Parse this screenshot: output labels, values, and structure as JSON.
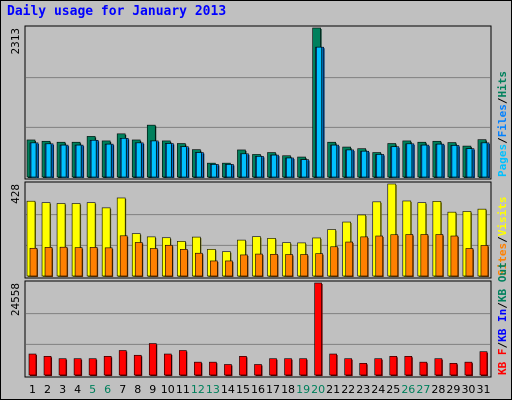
{
  "title": "Daily usage for January 2013",
  "colors": {
    "background": "#c0c0c0",
    "pages": "#00c0ff",
    "files": "#0080ff",
    "hits": "#00805c",
    "visits": "#ffff00",
    "sites": "#ff8000",
    "kb_in": "#0000ff",
    "kb_out": "#00805c",
    "kb_f": "#ff0000",
    "title": "#0000ff",
    "weekend_label": "#00805c",
    "weekday_label": "#000000"
  },
  "chart_data": {
    "type": "bar",
    "title": "Daily usage for January 2013",
    "x": {
      "labels": [
        "1",
        "2",
        "3",
        "4",
        "5",
        "6",
        "7",
        "8",
        "9",
        "10",
        "11",
        "12",
        "13",
        "14",
        "15",
        "16",
        "17",
        "18",
        "19",
        "20",
        "21",
        "22",
        "23",
        "24",
        "25",
        "26",
        "27",
        "28",
        "29",
        "30",
        "31"
      ],
      "weekend_days": [
        5,
        6,
        12,
        13,
        19,
        20,
        26,
        27
      ]
    },
    "panels": [
      {
        "id": "hits-files-pages",
        "ymax": 2313,
        "ymax_label": "2313",
        "legend": [
          {
            "text": "Pages",
            "color": "#00c0ff"
          },
          {
            "text": "Files",
            "color": "#0080ff"
          },
          {
            "text": "Hits",
            "color": "#00805c"
          }
        ],
        "series": [
          {
            "name": "Hits",
            "color": "#00805c",
            "values": [
              575,
              555,
              540,
              540,
              630,
              560,
              670,
              575,
              805,
              560,
              520,
              425,
              215,
              215,
              420,
              350,
              380,
              330,
              310,
              2313,
              540,
              465,
              440,
              380,
              520,
              560,
              540,
              555,
              535,
              480,
              580
            ]
          },
          {
            "name": "Files",
            "color": "#0080ff",
            "values": [
              530,
              515,
              495,
              495,
              570,
              510,
              600,
              530,
              560,
              520,
              470,
              380,
              195,
              195,
              360,
              320,
              340,
              295,
              270,
              2015,
              495,
              420,
              400,
              350,
              470,
              515,
              495,
              510,
              490,
              440,
              530
            ]
          },
          {
            "name": "Pages",
            "color": "#00c0ff",
            "values": [
              530,
              515,
              495,
              495,
              570,
              510,
              600,
              530,
              560,
              520,
              470,
              380,
              195,
              195,
              360,
              320,
              340,
              295,
              270,
              2015,
              495,
              420,
              400,
              350,
              470,
              515,
              495,
              510,
              490,
              440,
              530
            ]
          }
        ]
      },
      {
        "id": "visits-sites",
        "ymax": 428,
        "ymax_label": "428",
        "legend": [
          {
            "text": "Sites",
            "color": "#ff8000"
          },
          {
            "text": "Visits",
            "color": "#ffff00"
          }
        ],
        "series": [
          {
            "name": "Visits",
            "color": "#ffff00",
            "values": [
              348,
              341,
              337,
              337,
              341,
              317,
              363,
              197,
              182,
              178,
              161,
              181,
              124,
              113,
              167,
              183,
              175,
              155,
              154,
              177,
              216,
              251,
              284,
              345,
              428,
              349,
              341,
              347,
              297,
              300,
              311
            ]
          },
          {
            "name": "Sites",
            "color": "#ff8000",
            "values": [
              129,
              133,
              134,
              132,
              133,
              131,
              187,
              156,
              128,
              143,
              124,
              106,
              70,
              70,
              98,
              102,
              101,
              100,
              100,
              104,
              136,
              158,
              182,
              186,
              192,
              193,
              193,
              193,
              186,
              128,
              142
            ]
          }
        ]
      },
      {
        "id": "kbytes",
        "ymax": 24558,
        "ymax_label": "24558",
        "legend": [
          {
            "text": "KB F",
            "color": "#ff0000"
          },
          {
            "text": "KB In",
            "color": "#0000ff"
          },
          {
            "text": "KB Out",
            "color": "#00805c"
          }
        ],
        "series": [
          {
            "name": "KB F",
            "color": "#ff0000",
            "values": [
              5600,
              4990,
              4360,
              4360,
              4360,
              4990,
              6540,
              5270,
              8400,
              5600,
              6540,
              3430,
              3430,
              2810,
              4990,
              2810,
              4360,
              4360,
              4360,
              24558,
              5600,
              4360,
              3120,
              4360,
              4990,
              4990,
              3430,
              4360,
              3120,
              3430,
              6230
            ]
          }
        ]
      }
    ]
  }
}
